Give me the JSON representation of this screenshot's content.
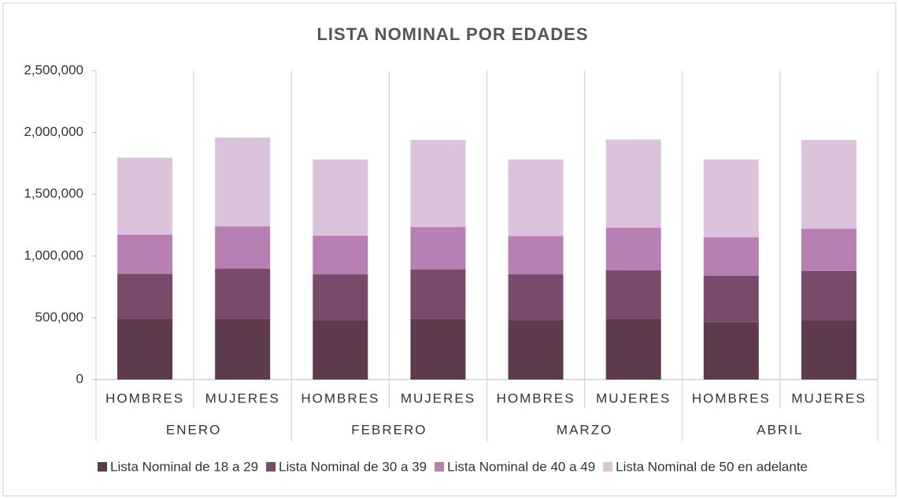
{
  "chart_data": {
    "type": "stacked_bar",
    "title": "LISTA NOMINAL POR EDADES",
    "categories": [
      "HOMBRES",
      "MUJERES",
      "HOMBRES",
      "MUJERES",
      "HOMBRES",
      "MUJERES",
      "HOMBRES",
      "MUJERES"
    ],
    "groups": [
      "ENERO",
      "FEBRERO",
      "MARZO",
      "ABRIL"
    ],
    "series": [
      {
        "name": "Lista Nominal de 18 a 29",
        "color": "#5e3a4f",
        "values": [
          490000,
          490000,
          480000,
          492000,
          480000,
          490000,
          465000,
          480000
        ]
      },
      {
        "name": "Lista Nominal de 30 a 39",
        "color": "#7a4a6a",
        "values": [
          365000,
          407000,
          372000,
          399000,
          372000,
          395000,
          375000,
          398000
        ]
      },
      {
        "name": "Lista Nominal de 40 a 49",
        "color": "#b77fb2",
        "values": [
          318000,
          343000,
          312000,
          343000,
          310000,
          345000,
          311000,
          343000
        ]
      },
      {
        "name": "Lista Nominal de 50 en adelante",
        "color": "#dcc3dc",
        "values": [
          623000,
          719000,
          617000,
          706000,
          620000,
          713000,
          630000,
          719000
        ]
      }
    ],
    "ylim": [
      0,
      2500000
    ],
    "yticks": [
      0,
      {
        "value": 500000,
        "label": "500,000"
      },
      {
        "value": 1000000,
        "label": "1,000,000"
      },
      {
        "value": 1500000,
        "label": "1,500,000"
      },
      {
        "value": 2000000,
        "label": "2,000,000"
      },
      {
        "value": 2500000,
        "label": "2,500,000"
      }
    ],
    "legend": "bottom"
  }
}
